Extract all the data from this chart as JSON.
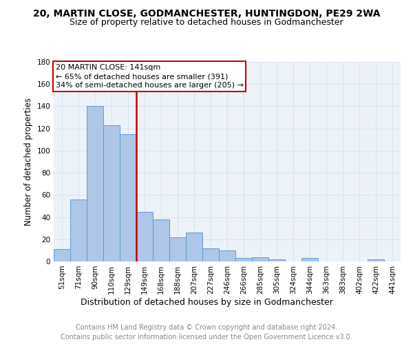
{
  "title1": "20, MARTIN CLOSE, GODMANCHESTER, HUNTINGDON, PE29 2WA",
  "title2": "Size of property relative to detached houses in Godmanchester",
  "xlabel": "Distribution of detached houses by size in Godmanchester",
  "ylabel": "Number of detached properties",
  "categories": [
    "51sqm",
    "71sqm",
    "90sqm",
    "110sqm",
    "129sqm",
    "149sqm",
    "168sqm",
    "188sqm",
    "207sqm",
    "227sqm",
    "246sqm",
    "266sqm",
    "285sqm",
    "305sqm",
    "324sqm",
    "344sqm",
    "363sqm",
    "383sqm",
    "402sqm",
    "422sqm",
    "441sqm"
  ],
  "values": [
    11,
    56,
    140,
    123,
    115,
    45,
    38,
    22,
    26,
    12,
    10,
    3,
    4,
    2,
    0,
    3,
    0,
    0,
    0,
    2,
    0
  ],
  "bar_color": "#aec6e8",
  "bar_edge_color": "#5a9bd4",
  "vline_x_index": 5.0,
  "vline_color": "#c00000",
  "annotation_title": "20 MARTIN CLOSE: 141sqm",
  "annotation_line1": "← 65% of detached houses are smaller (391)",
  "annotation_line2": "34% of semi-detached houses are larger (205) →",
  "annotation_box_color": "white",
  "annotation_box_edge_color": "#cc0000",
  "ylim": [
    0,
    180
  ],
  "yticks": [
    0,
    20,
    40,
    60,
    80,
    100,
    120,
    140,
    160,
    180
  ],
  "footer_line1": "Contains HM Land Registry data © Crown copyright and database right 2024.",
  "footer_line2": "Contains public sector information licensed under the Open Government Licence v3.0.",
  "background_color": "#edf2f9",
  "grid_color": "#d8e4f0",
  "title1_fontsize": 10,
  "title2_fontsize": 9,
  "xlabel_fontsize": 9,
  "ylabel_fontsize": 8.5,
  "tick_fontsize": 7.5,
  "footer_fontsize": 7,
  "annotation_fontsize": 8
}
